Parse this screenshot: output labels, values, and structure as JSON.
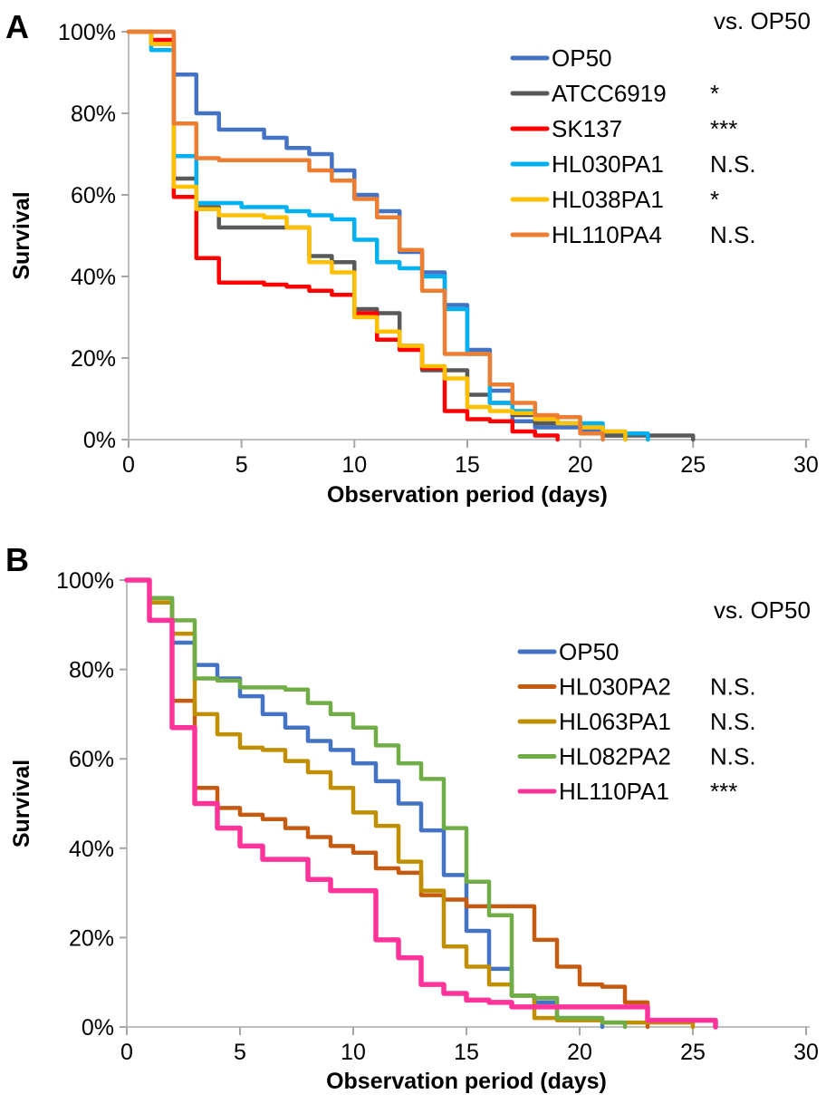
{
  "figure": {
    "background": "#ffffff",
    "panel_labels": [
      "A",
      "B"
    ]
  },
  "chart_data": [
    {
      "type": "line-step",
      "panel_label": "A",
      "legend_header": "vs. OP50",
      "xlabel": "Observation period (days)",
      "ylabel": "Survival",
      "xlim": [
        0,
        30
      ],
      "x_ticks": [
        0,
        5,
        10,
        15,
        20,
        25,
        30
      ],
      "ylim": [
        0,
        100
      ],
      "y_ticks": [
        0,
        20,
        40,
        60,
        80,
        100
      ],
      "y_tick_labels": [
        "0%",
        "20%",
        "40%",
        "60%",
        "80%",
        "100%"
      ],
      "grid": false,
      "legend_position": "top-right-inside",
      "series": [
        {
          "name": "OP50",
          "color": "#4472C4",
          "significance_vs_op50": "",
          "points": [
            [
              0,
              100
            ],
            [
              2,
              89.5
            ],
            [
              3,
              80
            ],
            [
              4,
              76
            ],
            [
              6,
              74
            ],
            [
              7,
              71.5
            ],
            [
              8,
              70
            ],
            [
              9,
              66
            ],
            [
              10,
              60
            ],
            [
              11,
              56
            ],
            [
              12,
              46
            ],
            [
              13,
              41
            ],
            [
              14,
              33
            ],
            [
              15,
              22
            ],
            [
              16,
              12
            ],
            [
              17,
              4.5
            ],
            [
              18,
              3
            ],
            [
              20,
              2
            ],
            [
              21,
              1
            ],
            [
              22,
              0
            ]
          ]
        },
        {
          "name": "ATCC6919",
          "color": "#595959",
          "significance_vs_op50": "*",
          "points": [
            [
              0,
              100
            ],
            [
              1,
              97
            ],
            [
              2,
              64
            ],
            [
              3,
              57
            ],
            [
              4,
              52
            ],
            [
              8,
              45
            ],
            [
              9,
              43.5
            ],
            [
              10,
              32
            ],
            [
              11,
              31
            ],
            [
              12,
              23
            ],
            [
              13,
              17
            ],
            [
              15,
              11
            ],
            [
              16,
              9
            ],
            [
              17,
              6
            ],
            [
              18,
              4
            ],
            [
              20,
              3
            ],
            [
              21,
              1
            ],
            [
              25,
              0
            ]
          ]
        },
        {
          "name": "SK137",
          "color": "#FF0000",
          "significance_vs_op50": "***",
          "points": [
            [
              0,
              100
            ],
            [
              1,
              98
            ],
            [
              2,
              59.5
            ],
            [
              3,
              44.5
            ],
            [
              4,
              38.5
            ],
            [
              6,
              38
            ],
            [
              7,
              37.5
            ],
            [
              8,
              36.5
            ],
            [
              9,
              35.5
            ],
            [
              10,
              31
            ],
            [
              11,
              24.5
            ],
            [
              12,
              22
            ],
            [
              13,
              17.5
            ],
            [
              14,
              7
            ],
            [
              15,
              5
            ],
            [
              16,
              4.5
            ],
            [
              17,
              2
            ],
            [
              18,
              1
            ],
            [
              19,
              0
            ]
          ]
        },
        {
          "name": "HL030PA1",
          "color": "#00B0F0",
          "significance_vs_op50": "N.S.",
          "points": [
            [
              0,
              100
            ],
            [
              1,
              95.5
            ],
            [
              2,
              69.5
            ],
            [
              3,
              58
            ],
            [
              5,
              57
            ],
            [
              7,
              56
            ],
            [
              8,
              55
            ],
            [
              9,
              54
            ],
            [
              10,
              49
            ],
            [
              11,
              43.5
            ],
            [
              12,
              42
            ],
            [
              13,
              40
            ],
            [
              14,
              32
            ],
            [
              15,
              21
            ],
            [
              16,
              9
            ],
            [
              17,
              7
            ],
            [
              18,
              5
            ],
            [
              19,
              4
            ],
            [
              21,
              2
            ],
            [
              22,
              1.5
            ],
            [
              23,
              0
            ]
          ]
        },
        {
          "name": "HL038PA1",
          "color": "#FFC000",
          "significance_vs_op50": "*",
          "points": [
            [
              0,
              100
            ],
            [
              1,
              97
            ],
            [
              2,
              62
            ],
            [
              3,
              56.5
            ],
            [
              4,
              55
            ],
            [
              6,
              54.5
            ],
            [
              7,
              52
            ],
            [
              8,
              43.5
            ],
            [
              9,
              41
            ],
            [
              10,
              30
            ],
            [
              11,
              26.5
            ],
            [
              12,
              23
            ],
            [
              13,
              18
            ],
            [
              14,
              15
            ],
            [
              15,
              8
            ],
            [
              16,
              7
            ],
            [
              17,
              6.5
            ],
            [
              18,
              5
            ],
            [
              19,
              4
            ],
            [
              20,
              3
            ],
            [
              21,
              2
            ],
            [
              22,
              0
            ]
          ]
        },
        {
          "name": "HL110PA4",
          "color": "#ED7D31",
          "significance_vs_op50": "N.S.",
          "points": [
            [
              0,
              100
            ],
            [
              2,
              77.5
            ],
            [
              3,
              69
            ],
            [
              4,
              68.5
            ],
            [
              8,
              66
            ],
            [
              9,
              63.5
            ],
            [
              10,
              59
            ],
            [
              11,
              54.5
            ],
            [
              12,
              46.5
            ],
            [
              13,
              36.5
            ],
            [
              14,
              21
            ],
            [
              16,
              13.5
            ],
            [
              17,
              9
            ],
            [
              18,
              6
            ],
            [
              19,
              5.5
            ],
            [
              20,
              1.5
            ],
            [
              21,
              0
            ]
          ]
        }
      ]
    },
    {
      "type": "line-step",
      "panel_label": "B",
      "legend_header": "vs. OP50",
      "xlabel": "Observation period (days)",
      "ylabel": "Survival",
      "xlim": [
        0,
        30
      ],
      "x_ticks": [
        0,
        5,
        10,
        15,
        20,
        25,
        30
      ],
      "ylim": [
        0,
        100
      ],
      "y_ticks": [
        0,
        20,
        40,
        60,
        80,
        100
      ],
      "y_tick_labels": [
        "0%",
        "20%",
        "40%",
        "60%",
        "80%",
        "100%"
      ],
      "grid": false,
      "legend_position": "top-right-inside",
      "series": [
        {
          "name": "OP50",
          "color": "#4472C4",
          "significance_vs_op50": "",
          "points": [
            [
              0,
              100
            ],
            [
              1,
              96
            ],
            [
              2,
              86
            ],
            [
              3,
              81
            ],
            [
              4,
              78
            ],
            [
              5,
              74
            ],
            [
              6,
              70
            ],
            [
              7,
              67
            ],
            [
              8,
              64
            ],
            [
              9,
              62
            ],
            [
              10,
              59
            ],
            [
              11,
              55
            ],
            [
              12,
              50
            ],
            [
              13,
              44
            ],
            [
              14,
              34
            ],
            [
              15,
              21.5
            ],
            [
              16,
              13
            ],
            [
              17,
              7
            ],
            [
              18,
              5.5
            ],
            [
              19,
              2
            ],
            [
              21,
              0
            ]
          ]
        },
        {
          "name": "HL030PA2",
          "color": "#C55A11",
          "significance_vs_op50": "N.S.",
          "points": [
            [
              0,
              100
            ],
            [
              1,
              95
            ],
            [
              2,
              73
            ],
            [
              3,
              53.5
            ],
            [
              4,
              49
            ],
            [
              5,
              47.5
            ],
            [
              6,
              46.5
            ],
            [
              7,
              44.5
            ],
            [
              8,
              42.5
            ],
            [
              9,
              40.5
            ],
            [
              10,
              39
            ],
            [
              11,
              35.5
            ],
            [
              12,
              34.5
            ],
            [
              13,
              29.5
            ],
            [
              14,
              28.5
            ],
            [
              15,
              27
            ],
            [
              18,
              19.5
            ],
            [
              19,
              13.5
            ],
            [
              20,
              9.5
            ],
            [
              21,
              9
            ],
            [
              22,
              5.5
            ],
            [
              23,
              0
            ]
          ]
        },
        {
          "name": "HL063PA1",
          "color": "#BF8F00",
          "significance_vs_op50": "N.S.",
          "points": [
            [
              0,
              100
            ],
            [
              1,
              95
            ],
            [
              2,
              88
            ],
            [
              3,
              70
            ],
            [
              4,
              65.5
            ],
            [
              5,
              62.5
            ],
            [
              6,
              62
            ],
            [
              7,
              59.5
            ],
            [
              8,
              57
            ],
            [
              9,
              53.5
            ],
            [
              10,
              48
            ],
            [
              11,
              45
            ],
            [
              12,
              37
            ],
            [
              13,
              30.5
            ],
            [
              14,
              18
            ],
            [
              15,
              13.5
            ],
            [
              16,
              9.5
            ],
            [
              17,
              7
            ],
            [
              18,
              2
            ],
            [
              19,
              1.5
            ],
            [
              21,
              1
            ],
            [
              25,
              0
            ]
          ]
        },
        {
          "name": "HL082PA2",
          "color": "#70AD47",
          "significance_vs_op50": "N.S.",
          "points": [
            [
              0,
              100
            ],
            [
              1,
              96
            ],
            [
              2,
              91
            ],
            [
              3,
              78
            ],
            [
              4,
              77.5
            ],
            [
              5,
              76
            ],
            [
              7,
              75.5
            ],
            [
              8,
              72.5
            ],
            [
              9,
              70
            ],
            [
              10,
              67
            ],
            [
              11,
              63
            ],
            [
              12,
              59
            ],
            [
              13,
              55.5
            ],
            [
              14,
              44.5
            ],
            [
              15,
              32.5
            ],
            [
              16,
              25
            ],
            [
              17,
              7
            ],
            [
              18,
              6.5
            ],
            [
              19,
              2
            ],
            [
              21,
              1
            ],
            [
              22,
              0
            ]
          ]
        },
        {
          "name": "HL110PA1",
          "color": "#FF3399",
          "significance_vs_op50": "***",
          "points": [
            [
              0,
              100
            ],
            [
              1,
              91
            ],
            [
              2,
              67
            ],
            [
              3,
              50
            ],
            [
              4,
              44.5
            ],
            [
              5,
              40.5
            ],
            [
              6,
              37.5
            ],
            [
              8,
              33
            ],
            [
              9,
              30.5
            ],
            [
              11,
              19.5
            ],
            [
              12,
              15.5
            ],
            [
              13,
              9.5
            ],
            [
              14,
              7.5
            ],
            [
              15,
              6
            ],
            [
              16,
              5.5
            ],
            [
              17,
              4.5
            ],
            [
              23,
              1.5
            ],
            [
              26,
              0
            ]
          ]
        }
      ]
    }
  ]
}
